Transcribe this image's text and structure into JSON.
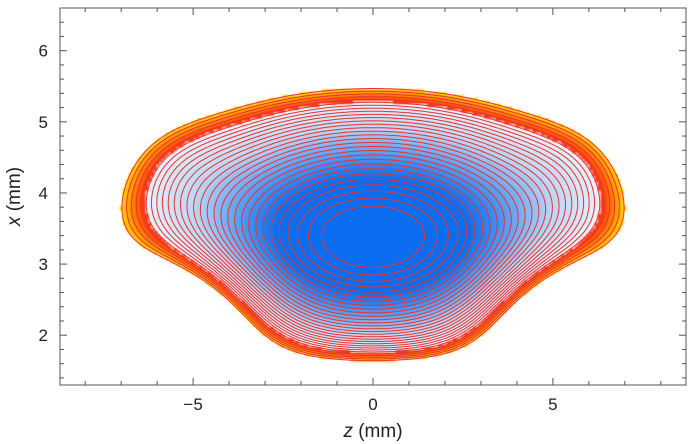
{
  "chart_data": {
    "type": "heatmap",
    "subtype": "contour-density",
    "title": "",
    "xlabel_var": "z",
    "xlabel_unit": " (mm)",
    "ylabel_var": "x",
    "ylabel_unit": " (mm)",
    "xlim": [
      -8.7,
      8.7
    ],
    "ylim": [
      1.3,
      6.6
    ],
    "xticks": [
      -5,
      0,
      5
    ],
    "xtick_labels": [
      "−5",
      "0",
      "5"
    ],
    "yticks": [
      2,
      3,
      4,
      5,
      6
    ],
    "ytick_labels": [
      "2",
      "3",
      "4",
      "5",
      "6"
    ],
    "grid": false,
    "legend": "none",
    "contour_color": "#e8322e",
    "fill_colors": {
      "low": "#0a6df0",
      "mid": "#bcd6f5",
      "high": "#ffffff",
      "hot": "#ff2a10",
      "hot_edge": "#ffd400"
    },
    "features": {
      "central_minimum": {
        "z": 0,
        "x": 3.35
      },
      "saddles": [
        {
          "z": -5.9,
          "x": 4.6
        },
        {
          "z": 5.9,
          "x": 4.6
        }
      ],
      "hot_peaks": [
        {
          "z": -5.8,
          "x": 2.5
        },
        {
          "z": 5.8,
          "x": 2.5
        }
      ],
      "bottom_dip_x": 1.3
    }
  }
}
